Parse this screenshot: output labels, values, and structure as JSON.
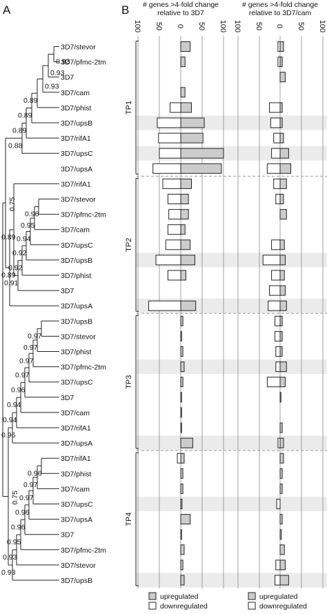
{
  "panel_labels": {
    "a": "A",
    "b": "B"
  },
  "chart_data": [
    {
      "type": "dendrogram",
      "panel": "A",
      "leaves": [
        "3D7/stevor",
        "3D7/pfmc-2tm",
        "3D7",
        "3D7/cam",
        "3D7/phist",
        "3D7/upsB",
        "3D7/rifA1",
        "3D7/upsC",
        "3D7/upsA",
        "3D7/rifA1",
        "3D7/stevor",
        "3D7/pfmc-2tm",
        "3D7/cam",
        "3D7/upsC",
        "3D7/upsB",
        "3D7/phist",
        "3D7",
        "3D7/upsA",
        "3D7/upsB",
        "3D7/stevor",
        "3D7/phist",
        "3D7/pfmc-2tm",
        "3D7/upsC",
        "3D7",
        "3D7/cam",
        "3D7/rifA1",
        "3D7/upsA",
        "3D7/rifA1",
        "3D7/phist",
        "3D7/cam",
        "3D7/upsC",
        "3D7/upsA",
        "3D7",
        "3D7/pfmc-2tm",
        "3D7/stevor",
        "3D7/upsB"
      ],
      "support_values": [
        "0.93",
        "0.93",
        "0.93",
        "0.89",
        "0.89",
        "0.89",
        "0.88",
        "0.75",
        "0.89",
        "0.96",
        "0.95",
        "0.94",
        "0.92",
        "0.92",
        "0.91",
        "0.89",
        "0.97",
        "0.97",
        "0.97",
        "0.97",
        "0.96",
        "0.94",
        "0.94",
        "0.96",
        "0.75",
        "0.96",
        "0.97",
        "0.97",
        "0.96",
        "0.96",
        "0.95",
        "0.93",
        "0.93"
      ]
    },
    {
      "type": "bar",
      "panel": "B",
      "title": "# genes >4-fold change relative to 3D7",
      "title_lines": [
        "# genes >4-fold change",
        "relative to 3D7"
      ],
      "tick_labels": [
        "100",
        "50",
        "0",
        "50",
        "100"
      ],
      "xlim": [
        -100,
        100
      ],
      "groups": [
        "TP1",
        "TP2",
        "TP3",
        "TP4"
      ],
      "series": [
        {
          "name": "upregulated",
          "color": "#cccccc",
          "values": [
            22,
            10,
            0,
            10,
            25,
            55,
            52,
            100,
            95,
            25,
            18,
            18,
            10,
            22,
            33,
            12,
            0,
            35,
            5,
            2,
            5,
            8,
            5,
            2,
            2,
            2,
            28,
            8,
            5,
            5,
            3,
            22,
            2,
            8,
            5,
            8
          ]
        },
        {
          "name": "downregulated",
          "color": "#ffffff",
          "values": [
            0,
            0,
            0,
            0,
            25,
            55,
            52,
            50,
            65,
            42,
            30,
            28,
            30,
            35,
            58,
            30,
            0,
            75,
            0,
            0,
            0,
            0,
            0,
            0,
            0,
            0,
            0,
            8,
            0,
            0,
            0,
            0,
            0,
            0,
            0,
            0
          ]
        }
      ]
    },
    {
      "type": "bar",
      "panel": "B",
      "title": "# genes >4-fold change relative to 3D7/cam",
      "title_lines": [
        "# genes >4-fold change",
        "relative to 3D7/cam"
      ],
      "tick_labels": [
        "100",
        "50",
        "0",
        "50",
        "100"
      ],
      "xlim": [
        -100,
        100
      ],
      "series": [
        {
          "name": "upregulated",
          "color": "#cccccc",
          "values": [
            8,
            5,
            12,
            0,
            5,
            5,
            8,
            20,
            25,
            15,
            8,
            15,
            0,
            10,
            12,
            10,
            12,
            15,
            5,
            5,
            5,
            15,
            12,
            2,
            0,
            5,
            8,
            8,
            5,
            5,
            0,
            5,
            3,
            10,
            12,
            20
          ]
        },
        {
          "name": "downregulated",
          "color": "#ffffff",
          "values": [
            5,
            5,
            0,
            0,
            25,
            22,
            15,
            20,
            30,
            15,
            10,
            0,
            0,
            20,
            40,
            20,
            25,
            28,
            12,
            12,
            10,
            10,
            30,
            0,
            0,
            0,
            5,
            0,
            0,
            0,
            8,
            0,
            0,
            0,
            10,
            12
          ]
        }
      ]
    }
  ],
  "legend": {
    "up": "upregulated",
    "down": "downregulated"
  }
}
